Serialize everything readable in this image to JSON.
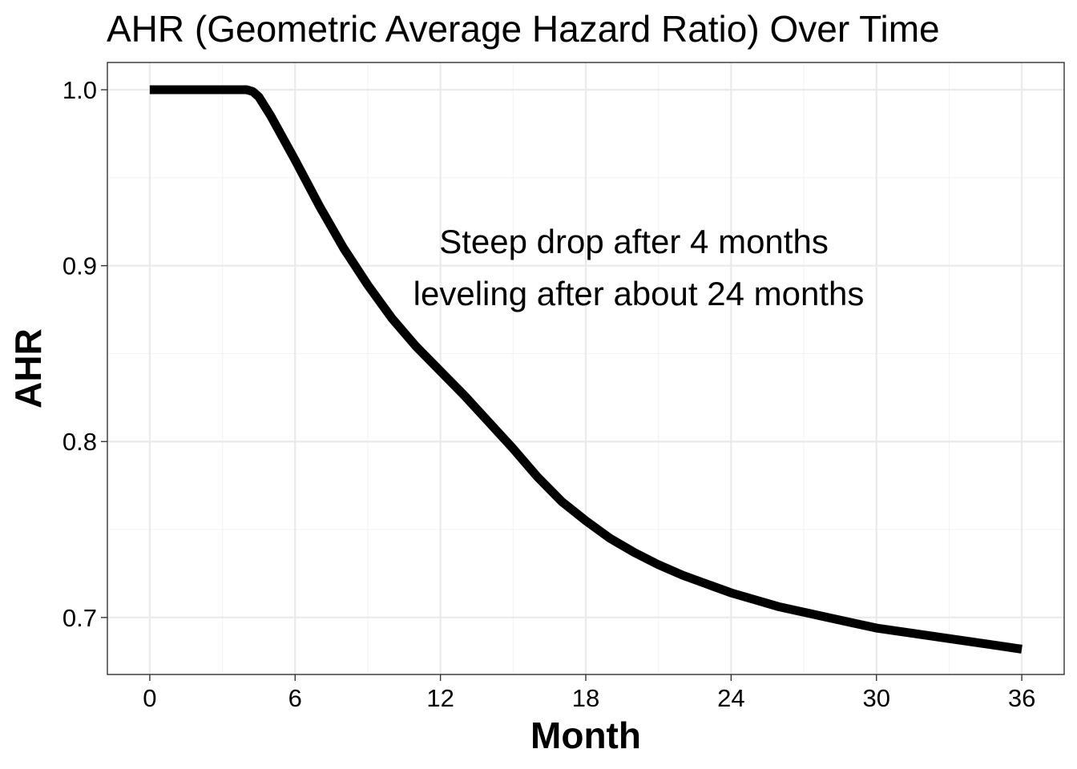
{
  "chart_data": {
    "type": "line",
    "title": "AHR (Geometric Average Hazard Ratio) Over Time",
    "xlabel": "Month",
    "ylabel": "AHR",
    "xlim": [
      -1.75,
      37.75
    ],
    "ylim": [
      0.6676,
      1.0155
    ],
    "x_ticks": [
      0,
      6,
      12,
      18,
      24,
      30,
      36
    ],
    "y_ticks": [
      0.7,
      0.8,
      0.9,
      1.0
    ],
    "y_tick_labels": [
      "0.7",
      "0.8",
      "0.9",
      "1.0"
    ],
    "grid": true,
    "annotations": [
      "Steep drop after 4 months",
      "leveling after about 24 months"
    ],
    "series": [
      {
        "color": "#000000",
        "x": [
          0,
          1,
          2,
          3,
          4,
          4.25,
          4.5,
          5,
          6,
          7,
          8,
          9,
          10,
          11,
          12,
          13,
          14,
          15,
          16,
          17,
          18,
          19,
          20,
          21,
          22,
          23,
          24,
          25,
          26,
          27,
          28,
          29,
          30,
          31,
          32,
          33,
          34,
          35,
          36
        ],
        "y": [
          1.0,
          1.0,
          1.0,
          1.0,
          1.0,
          0.999,
          0.996,
          0.985,
          0.96,
          0.934,
          0.91,
          0.889,
          0.87,
          0.854,
          0.84,
          0.826,
          0.811,
          0.796,
          0.78,
          0.766,
          0.755,
          0.745,
          0.737,
          0.73,
          0.724,
          0.719,
          0.714,
          0.71,
          0.706,
          0.703,
          0.7,
          0.697,
          0.694,
          0.692,
          0.69,
          0.688,
          0.686,
          0.684,
          0.682
        ]
      }
    ]
  }
}
